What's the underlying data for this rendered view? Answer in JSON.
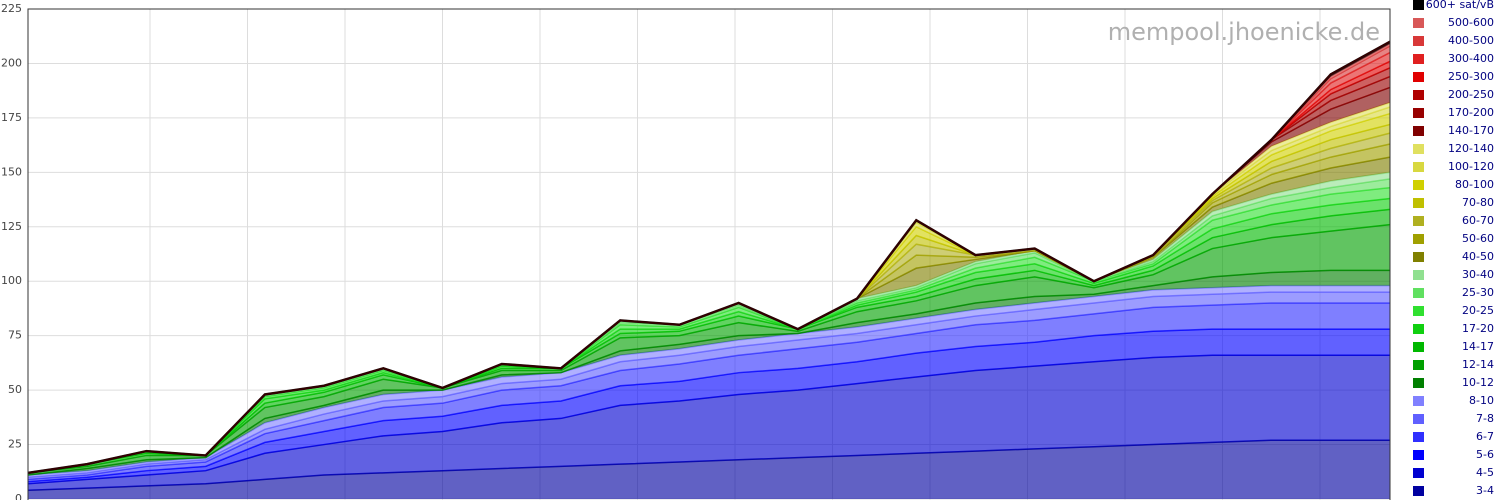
{
  "chart_data": {
    "type": "stacked-area",
    "watermark": "mempool.jhoenicke.de",
    "categories": [
      null,
      null,
      null,
      null,
      null,
      null,
      null,
      null,
      null,
      null,
      null,
      null,
      null,
      null,
      null,
      null,
      null,
      null,
      null,
      null,
      null,
      null,
      null,
      null
    ],
    "ylim": [
      0,
      225
    ],
    "yticks": [
      0,
      25,
      50,
      75,
      100,
      125,
      150,
      175,
      200,
      225
    ],
    "grid": true,
    "series": [
      {
        "name": "600+ sat/vB",
        "color": "#000000",
        "values": [
          0,
          0,
          0,
          0,
          0,
          0,
          0,
          0,
          0,
          0,
          0,
          0,
          0,
          0,
          0,
          0,
          0,
          0,
          0,
          0,
          0,
          0,
          1,
          1
        ]
      },
      {
        "name": "500-600",
        "color": "#d85858",
        "values": [
          0,
          0,
          0,
          0,
          0,
          0,
          0,
          0,
          0,
          0,
          0,
          0,
          0,
          0,
          0,
          0,
          0,
          0,
          0,
          0,
          0,
          0,
          1,
          1
        ]
      },
      {
        "name": "400-500",
        "color": "#d83838",
        "values": [
          0,
          0,
          0,
          0,
          0,
          0,
          0,
          0,
          0,
          0,
          0,
          0,
          0,
          0,
          0,
          0,
          0,
          0,
          0,
          0,
          0,
          0,
          2,
          3
        ]
      },
      {
        "name": "300-400",
        "color": "#e02020",
        "values": [
          0,
          0,
          0,
          0,
          0,
          0,
          0,
          0,
          0,
          0,
          0,
          0,
          0,
          0,
          0,
          0,
          0,
          0,
          0,
          0,
          0,
          0,
          3,
          4
        ]
      },
      {
        "name": "250-300",
        "color": "#e00000",
        "values": [
          0,
          0,
          0,
          0,
          0,
          0,
          0,
          0,
          0,
          0,
          0,
          0,
          0,
          0,
          0,
          0,
          0,
          0,
          0,
          0,
          0,
          0,
          2,
          3
        ]
      },
      {
        "name": "200-250",
        "color": "#b00000",
        "values": [
          0,
          0,
          0,
          0,
          0,
          0,
          0,
          0,
          0,
          0,
          0,
          0,
          0,
          0,
          0,
          0,
          0,
          0,
          0,
          0,
          0,
          0,
          3,
          4
        ]
      },
      {
        "name": "170-200",
        "color": "#980000",
        "values": [
          0,
          0,
          0,
          0,
          0,
          0,
          0,
          0,
          0,
          0,
          0,
          0,
          0,
          0,
          0,
          0,
          0,
          0,
          0,
          0,
          0,
          1,
          4,
          5
        ]
      },
      {
        "name": "140-170",
        "color": "#800000",
        "values": [
          0,
          0,
          0,
          0,
          0,
          0,
          0,
          0,
          0,
          0,
          0,
          0,
          0,
          0,
          0,
          0,
          0,
          0,
          0,
          0,
          0,
          2,
          6,
          7
        ]
      },
      {
        "name": "120-140",
        "color": "#e0e060",
        "values": [
          0,
          0,
          0,
          0,
          0,
          0,
          0,
          0,
          0,
          0,
          0,
          0,
          0,
          0,
          0,
          1,
          0,
          0,
          0,
          0,
          0,
          2,
          2,
          2
        ]
      },
      {
        "name": "100-120",
        "color": "#d8d840",
        "values": [
          0,
          0,
          0,
          0,
          0,
          0,
          0,
          0,
          0,
          0,
          0,
          0,
          0,
          0,
          0,
          2,
          0,
          0,
          0,
          0,
          1,
          2,
          2,
          3
        ]
      },
      {
        "name": "80-100",
        "color": "#d0d000",
        "values": [
          0,
          0,
          0,
          0,
          0,
          0,
          0,
          0,
          0,
          0,
          0,
          0,
          0,
          0,
          0,
          4,
          0,
          0,
          0,
          0,
          1,
          3,
          4,
          5
        ]
      },
      {
        "name": "70-80",
        "color": "#c0c000",
        "values": [
          0,
          0,
          0,
          0,
          0,
          0,
          0,
          0,
          0,
          0,
          0,
          0,
          0,
          0,
          0,
          4,
          0,
          0,
          0,
          0,
          1,
          3,
          4,
          4
        ]
      },
      {
        "name": "60-70",
        "color": "#b0b020",
        "values": [
          0,
          0,
          0,
          0,
          0,
          0,
          0,
          0,
          0,
          0,
          0,
          0,
          0,
          0,
          0,
          5,
          1,
          1,
          0,
          1,
          1,
          3,
          4,
          5
        ]
      },
      {
        "name": "50-60",
        "color": "#a0a000",
        "values": [
          0,
          0,
          0,
          0,
          0,
          0,
          0,
          0,
          0,
          0,
          0,
          0,
          0,
          0,
          0,
          6,
          1,
          0,
          0,
          0,
          2,
          4,
          5,
          6
        ]
      },
      {
        "name": "40-50",
        "color": "#808000",
        "values": [
          0,
          0,
          0,
          0,
          0,
          0,
          0,
          0,
          0,
          0,
          0,
          0,
          0,
          0,
          0,
          8,
          1,
          0,
          0,
          1,
          2,
          5,
          6,
          7
        ]
      },
      {
        "name": "30-40",
        "color": "#90e090",
        "values": [
          0,
          0,
          0,
          0,
          0,
          0,
          0,
          0,
          0,
          0,
          1,
          0,
          1,
          0,
          1,
          1,
          1,
          1,
          0,
          1,
          2,
          2,
          3,
          3
        ]
      },
      {
        "name": "25-30",
        "color": "#60e060",
        "values": [
          0,
          0,
          0,
          0,
          1,
          1,
          1,
          0,
          0,
          0,
          1,
          1,
          1,
          0,
          1,
          1,
          2,
          2,
          0,
          1,
          2,
          3,
          3,
          4
        ]
      },
      {
        "name": "20-25",
        "color": "#30e030",
        "values": [
          0,
          0,
          0,
          0,
          1,
          1,
          1,
          0,
          1,
          0,
          2,
          1,
          2,
          0,
          1,
          1,
          2,
          3,
          1,
          1,
          4,
          4,
          5,
          5
        ]
      },
      {
        "name": "17-20",
        "color": "#10d010",
        "values": [
          0,
          0,
          1,
          0,
          2,
          1,
          1,
          0,
          1,
          0,
          2,
          1,
          2,
          0,
          1,
          2,
          3,
          3,
          1,
          2,
          4,
          5,
          5,
          5
        ]
      },
      {
        "name": "14-17",
        "color": "#00b800",
        "values": [
          0,
          1,
          1,
          0,
          2,
          2,
          2,
          0,
          1,
          1,
          2,
          2,
          3,
          1,
          2,
          2,
          3,
          3,
          1,
          2,
          5,
          6,
          7,
          7
        ]
      },
      {
        "name": "12-14",
        "color": "#00a000",
        "values": [
          1,
          1,
          2,
          1,
          5,
          4,
          5,
          1,
          2,
          1,
          6,
          4,
          6,
          1,
          5,
          6,
          8,
          9,
          3,
          5,
          13,
          16,
          18,
          21
        ]
      },
      {
        "name": "10-12",
        "color": "#008000",
        "values": [
          0,
          1,
          1,
          0,
          2,
          1,
          2,
          0,
          1,
          0,
          2,
          2,
          2,
          0,
          2,
          2,
          3,
          3,
          1,
          2,
          5,
          6,
          7,
          7
        ]
      },
      {
        "name": "8-10",
        "color": "#8080ff",
        "values": [
          1,
          1,
          1,
          1,
          3,
          3,
          3,
          3,
          3,
          3,
          3,
          3,
          3,
          3,
          3,
          3,
          3,
          3,
          3,
          3,
          3,
          3,
          3,
          3
        ]
      },
      {
        "name": "7-8",
        "color": "#6060ff",
        "values": [
          1,
          1,
          1,
          1,
          2,
          3,
          3,
          3,
          3,
          3,
          4,
          4,
          4,
          4,
          4,
          4,
          4,
          5,
          5,
          5,
          5,
          5,
          5,
          5
        ]
      },
      {
        "name": "6-7",
        "color": "#3030ff",
        "values": [
          1,
          1,
          2,
          2,
          4,
          5,
          6,
          6,
          7,
          7,
          7,
          8,
          8,
          9,
          9,
          9,
          10,
          10,
          10,
          11,
          11,
          12,
          12,
          12
        ]
      },
      {
        "name": "5-6",
        "color": "#0000ff",
        "values": [
          1,
          1,
          2,
          2,
          5,
          6,
          7,
          7,
          8,
          8,
          9,
          9,
          10,
          10,
          10,
          11,
          11,
          11,
          12,
          12,
          12,
          12,
          12,
          12
        ]
      },
      {
        "name": "4-5",
        "color": "#0000d0",
        "values": [
          3,
          4,
          5,
          6,
          12,
          14,
          17,
          18,
          21,
          22,
          27,
          28,
          30,
          31,
          33,
          35,
          37,
          38,
          39,
          40,
          40,
          39,
          39,
          39
        ]
      },
      {
        "name": "3-4",
        "color": "#0000a0",
        "values": [
          4,
          5,
          6,
          7,
          9,
          11,
          12,
          13,
          14,
          15,
          16,
          17,
          18,
          19,
          20,
          21,
          22,
          23,
          24,
          25,
          26,
          27,
          27,
          27
        ]
      }
    ]
  }
}
